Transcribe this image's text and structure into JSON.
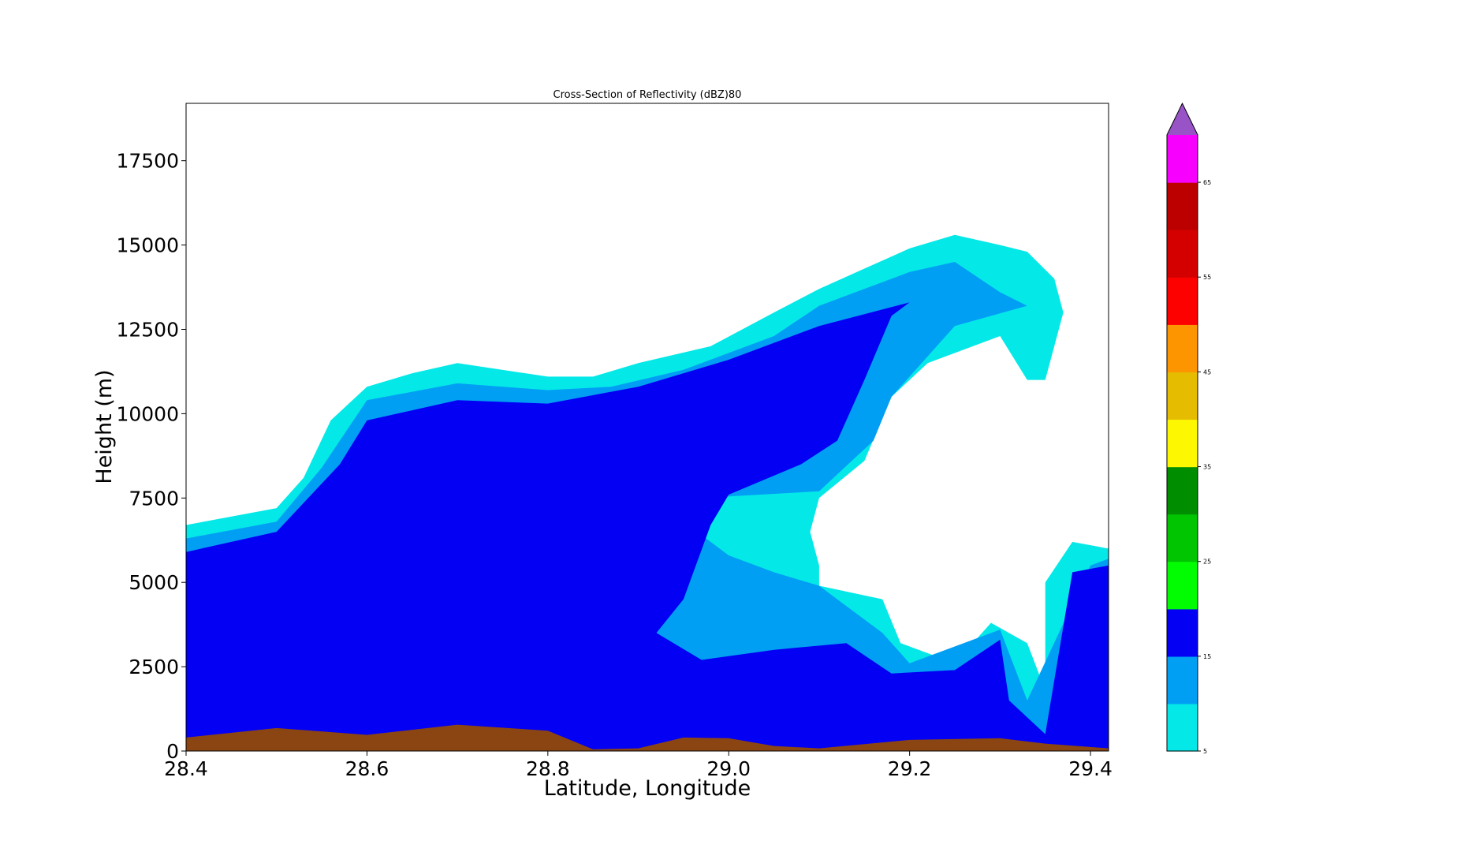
{
  "chart_data": {
    "type": "contourf",
    "title": "Cross-Section of Reflectivity (dBZ)80",
    "xlabel": "Latitude, Longitude",
    "ylabel": "Height (m)",
    "xlim": [
      28.4,
      29.42
    ],
    "ylim": [
      0,
      19200
    ],
    "x_ticks": [
      "28.4",
      "28.6",
      "28.8",
      "29.0",
      "29.2",
      "29.4"
    ],
    "y_ticks": [
      "0",
      "2500",
      "5000",
      "7500",
      "10000",
      "12500",
      "15000",
      "17500"
    ],
    "colorbar": {
      "levels": [
        5,
        10,
        15,
        20,
        25,
        30,
        35,
        40,
        45,
        50,
        55,
        60,
        65,
        70
      ],
      "tick_labels": [
        "5",
        "15",
        "25",
        "35",
        "45",
        "55",
        "65"
      ],
      "colors": [
        "#04e9e7",
        "#019ff4",
        "#0300f4",
        "#02fd02",
        "#01c501",
        "#008e00",
        "#fdf802",
        "#e5bc00",
        "#fd9500",
        "#fd0000",
        "#d40000",
        "#bc0000",
        "#f800fd"
      ],
      "extend_color": "#9854c6",
      "extend": "max"
    },
    "terrain_color": "#8b4513",
    "terrain_height": [
      [
        28.4,
        400
      ],
      [
        28.5,
        680
      ],
      [
        28.6,
        480
      ],
      [
        28.7,
        780
      ],
      [
        28.8,
        600
      ],
      [
        28.85,
        50
      ],
      [
        28.9,
        80
      ],
      [
        28.95,
        400
      ],
      [
        29.0,
        380
      ],
      [
        29.05,
        150
      ],
      [
        29.1,
        80
      ],
      [
        29.2,
        330
      ],
      [
        29.3,
        380
      ],
      [
        29.35,
        220
      ],
      [
        29.42,
        80
      ]
    ],
    "contour_regions": [
      {
        "level": 5,
        "points": [
          [
            28.4,
            6700
          ],
          [
            28.5,
            7200
          ],
          [
            28.53,
            8100
          ],
          [
            28.56,
            9800
          ],
          [
            28.6,
            10800
          ],
          [
            28.65,
            11200
          ],
          [
            28.7,
            11500
          ],
          [
            28.8,
            11100
          ],
          [
            28.85,
            11100
          ],
          [
            28.9,
            11500
          ],
          [
            28.98,
            12000
          ],
          [
            29.05,
            13000
          ],
          [
            29.1,
            13700
          ],
          [
            29.15,
            14300
          ],
          [
            29.2,
            14900
          ],
          [
            29.25,
            15300
          ],
          [
            29.3,
            15000
          ],
          [
            29.33,
            14800
          ],
          [
            29.36,
            14000
          ],
          [
            29.37,
            13000
          ],
          [
            29.35,
            11000
          ],
          [
            29.33,
            11000
          ],
          [
            29.3,
            12300
          ],
          [
            29.22,
            11500
          ],
          [
            29.18,
            10500
          ],
          [
            29.15,
            8600
          ],
          [
            29.1,
            7500
          ],
          [
            29.09,
            6500
          ],
          [
            29.1,
            5500
          ],
          [
            29.1,
            4900
          ],
          [
            29.17,
            4500
          ],
          [
            29.19,
            3200
          ],
          [
            29.25,
            2600
          ],
          [
            29.29,
            3800
          ],
          [
            29.33,
            3200
          ],
          [
            29.35,
            1800
          ],
          [
            29.35,
            5000
          ],
          [
            29.38,
            6200
          ],
          [
            29.42,
            6000
          ],
          [
            29.42,
            0
          ],
          [
            28.4,
            0
          ]
        ]
      },
      {
        "level": 10,
        "points": [
          [
            28.4,
            6300
          ],
          [
            28.5,
            6800
          ],
          [
            28.55,
            8400
          ],
          [
            28.6,
            10400
          ],
          [
            28.7,
            10900
          ],
          [
            28.8,
            10700
          ],
          [
            28.87,
            10800
          ],
          [
            28.95,
            11300
          ],
          [
            29.05,
            12300
          ],
          [
            29.1,
            13200
          ],
          [
            29.2,
            14200
          ],
          [
            29.25,
            14500
          ],
          [
            29.3,
            13600
          ],
          [
            29.33,
            13200
          ],
          [
            29.25,
            12600
          ],
          [
            29.18,
            10500
          ],
          [
            29.16,
            9200
          ],
          [
            29.1,
            7700
          ],
          [
            28.97,
            7500
          ],
          [
            28.97,
            6400
          ],
          [
            29.0,
            5800
          ],
          [
            29.05,
            5300
          ],
          [
            29.1,
            4900
          ],
          [
            29.17,
            3500
          ],
          [
            29.2,
            2600
          ],
          [
            29.3,
            3600
          ],
          [
            29.33,
            1500
          ],
          [
            29.4,
            5500
          ],
          [
            29.42,
            5700
          ],
          [
            29.42,
            0
          ],
          [
            28.4,
            0
          ]
        ]
      },
      {
        "level": 15,
        "points": [
          [
            28.4,
            5900
          ],
          [
            28.5,
            6500
          ],
          [
            28.57,
            8500
          ],
          [
            28.6,
            9800
          ],
          [
            28.7,
            10400
          ],
          [
            28.8,
            10300
          ],
          [
            28.9,
            10800
          ],
          [
            29.0,
            11600
          ],
          [
            29.1,
            12600
          ],
          [
            29.2,
            13300
          ],
          [
            29.18,
            12900
          ],
          [
            29.15,
            11000
          ],
          [
            29.12,
            9200
          ],
          [
            29.08,
            8500
          ],
          [
            29.0,
            7600
          ],
          [
            28.98,
            6700
          ],
          [
            28.95,
            4500
          ],
          [
            28.92,
            3500
          ],
          [
            28.97,
            2700
          ],
          [
            29.05,
            3000
          ],
          [
            29.13,
            3200
          ],
          [
            29.18,
            2300
          ],
          [
            29.25,
            2400
          ],
          [
            29.3,
            3300
          ],
          [
            29.31,
            1500
          ],
          [
            29.35,
            500
          ],
          [
            29.38,
            5300
          ],
          [
            29.42,
            5500
          ],
          [
            29.42,
            0
          ],
          [
            28.4,
            0
          ]
        ]
      }
    ]
  }
}
